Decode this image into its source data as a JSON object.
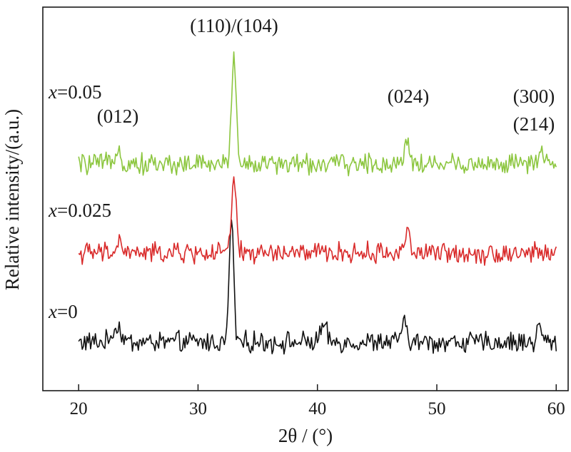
{
  "chart_data": {
    "type": "line",
    "x_label": "2θ / (°)",
    "y_label": "Relative intensity/(a.u.)",
    "xlim": [
      17,
      61
    ],
    "xticks": [
      "20",
      "30",
      "40",
      "50",
      "60"
    ],
    "yticks": [],
    "grid": false,
    "series": [
      {
        "name": "x=0",
        "name_italic": "x",
        "name_rest": "=0",
        "color": "#111111",
        "baseline": 0,
        "peaks": [
          [
            23.2,
            0.9,
            0.35
          ],
          [
            32.8,
            7.0,
            0.18
          ],
          [
            40.5,
            0.9,
            0.25
          ],
          [
            47.2,
            1.0,
            0.25
          ],
          [
            58.6,
            0.9,
            0.2
          ]
        ]
      },
      {
        "name": "x=0.025",
        "name_italic": "x",
        "name_rest": "=0.025",
        "color": "#d92a2a",
        "baseline": 5,
        "peaks": [
          [
            23.4,
            0.6,
            0.25
          ],
          [
            33.0,
            4.0,
            0.2
          ],
          [
            47.5,
            1.2,
            0.25
          ]
        ]
      },
      {
        "name": "x=0.05",
        "name_italic": "x",
        "name_rest": "=0.05",
        "color": "#8cc63f",
        "baseline": 10,
        "peaks": [
          [
            23.3,
            1.2,
            0.18
          ],
          [
            33.0,
            6.0,
            0.2
          ],
          [
            47.5,
            1.5,
            0.22
          ],
          [
            58.8,
            0.5,
            0.2
          ]
        ]
      }
    ],
    "annotations": [
      {
        "text": "(110)/(104)",
        "x": 33.0
      },
      {
        "text": "(012)",
        "x": 23.3
      },
      {
        "text": "(024)",
        "x": 47.5
      },
      {
        "text": "(300)",
        "x": 57.5
      },
      {
        "text": "(214)",
        "x": 57.5
      }
    ]
  }
}
